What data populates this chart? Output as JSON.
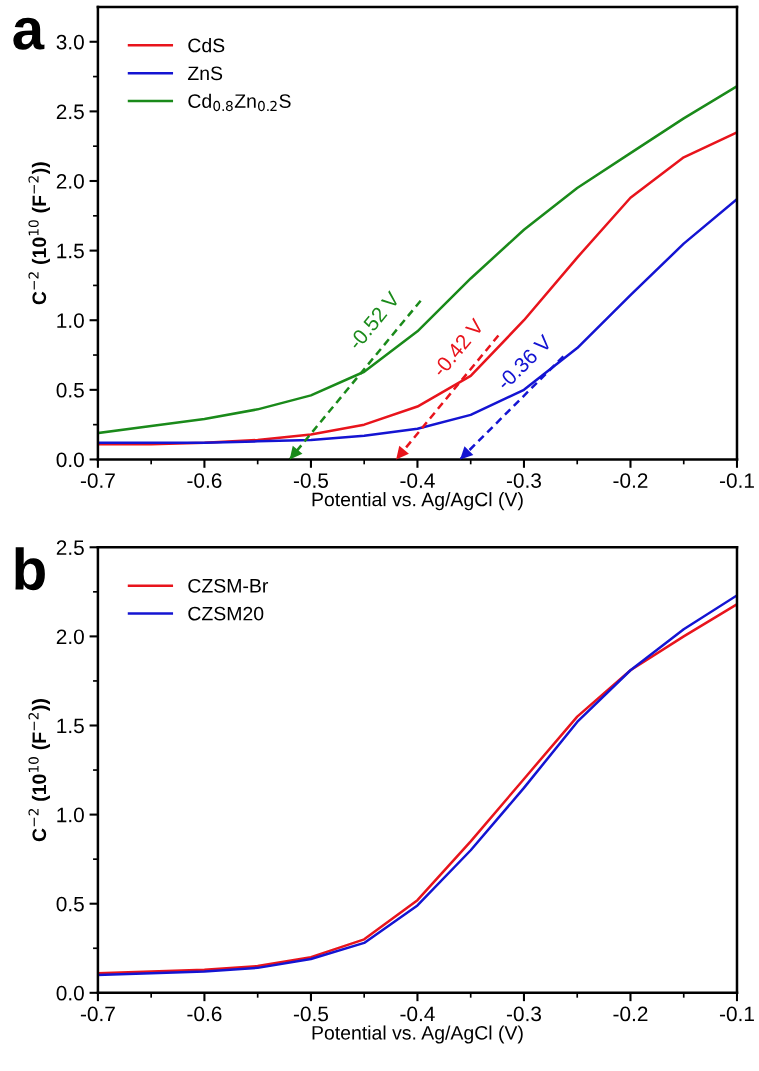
{
  "chart_data": [
    {
      "type": "line",
      "title": "a",
      "xlabel": "Potential vs. Ag/AgCl (V)",
      "ylabel": "C$^{−2}$ (10$^{10}$ (F$^{−2}$))",
      "xlim": [
        -0.7,
        -0.1
      ],
      "xticks": [
        -0.7,
        -0.6,
        -0.5,
        -0.4,
        -0.3,
        -0.2,
        -0.1
      ],
      "ylim": [
        0,
        3.25
      ],
      "yticks": [
        {
          "value": 0,
          "label": "0.0"
        },
        0.5,
        {
          "value": 1,
          "label": "1.0"
        },
        1.5,
        {
          "value": 2,
          "label": "2.0"
        },
        2.5,
        {
          "value": 3,
          "label": "3.0"
        }
      ],
      "legend": "top left",
      "grid": false,
      "marker": "none",
      "line_style": "solid",
      "x": [
        -0.7,
        -0.65,
        -0.6,
        -0.55,
        -0.5,
        -0.45,
        -0.4,
        -0.35,
        -0.3,
        -0.25,
        -0.2,
        -0.15,
        -0.1
      ],
      "series": [
        {
          "name": "CdS",
          "color": "#e8141c",
          "values": [
            0.11,
            0.11,
            0.12,
            0.14,
            0.18,
            0.25,
            0.38,
            0.6,
            1.0,
            1.45,
            1.88,
            2.17,
            2.35
          ]
        },
        {
          "name": "ZnS",
          "color": "#1414d2",
          "values": [
            0.12,
            0.12,
            0.12,
            0.13,
            0.14,
            0.17,
            0.22,
            0.32,
            0.5,
            0.8,
            1.18,
            1.55,
            1.87
          ]
        },
        {
          "name": "Cd$_{0.8}$Zn$_{0.2}$S",
          "color": "#1a8a1a",
          "values": [
            0.19,
            0.24,
            0.29,
            0.36,
            0.46,
            0.63,
            0.92,
            1.3,
            1.65,
            1.95,
            2.2,
            2.45,
            2.68
          ]
        },
        {
          "type": "line",
          "line_style": "dashed",
          "color": "#1a8a1a",
          "x": [
            -0.397,
            -0.52
          ],
          "values": [
            1.14,
            0
          ]
        },
        {
          "type": "line",
          "line_style": "dashed",
          "color": "#e8141c",
          "x": [
            -0.324,
            -0.42
          ],
          "values": [
            0.89,
            0
          ]
        },
        {
          "type": "line",
          "line_style": "dashed",
          "color": "#1414d2",
          "x": [
            -0.263,
            -0.36
          ],
          "values": [
            0.74,
            0
          ]
        }
      ],
      "annotations": [
        "-0.52 V",
        "-0.42 V",
        "-0.36 V"
      ]
    },
    {
      "type": "line",
      "title": "b",
      "xlabel": "Potential vs. Ag/AgCl (V)",
      "ylabel": "C$^{−2}$ (10$^{10}$ (F$^{−2}$))",
      "xlim": [
        -0.7,
        -0.1
      ],
      "xticks": [
        -0.7,
        -0.6,
        -0.5,
        -0.4,
        -0.3,
        -0.2,
        -0.1
      ],
      "ylim": [
        0,
        2.5
      ],
      "yticks": [
        {
          "value": 0,
          "label": "0.0"
        },
        0.5,
        {
          "value": 1,
          "label": "1.0"
        },
        1.5,
        {
          "value": 2,
          "label": "2.0"
        },
        2.5
      ],
      "legend": "top left",
      "grid": false,
      "marker": "none",
      "line_style": "solid",
      "x": [
        -0.7,
        -0.65,
        -0.6,
        -0.55,
        -0.5,
        -0.45,
        -0.4,
        -0.35,
        -0.3,
        -0.25,
        -0.2,
        -0.15,
        -0.1
      ],
      "series": [
        {
          "name": "CZSM-Br",
          "color": "#e8141c",
          "values": [
            0.11,
            0.12,
            0.13,
            0.15,
            0.2,
            0.3,
            0.52,
            0.85,
            1.2,
            1.55,
            1.81,
            2.0,
            2.18
          ]
        },
        {
          "name": "CZSM20",
          "color": "#1414d2",
          "values": [
            0.1,
            0.11,
            0.12,
            0.14,
            0.19,
            0.28,
            0.49,
            0.8,
            1.15,
            1.52,
            1.81,
            2.04,
            2.23
          ]
        }
      ]
    }
  ]
}
